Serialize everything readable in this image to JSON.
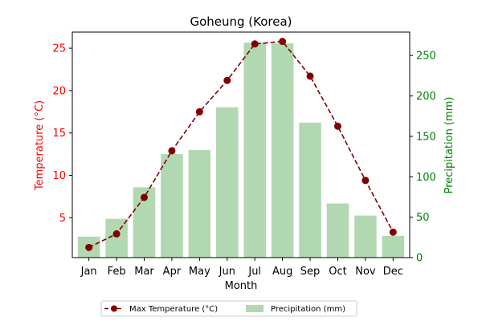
{
  "chart_data": {
    "type": "bar+line",
    "title": "Goheung (Korea)",
    "xlabel": "Month",
    "categories": [
      "Jan",
      "Feb",
      "Mar",
      "Apr",
      "May",
      "Jun",
      "Jul",
      "Aug",
      "Sep",
      "Oct",
      "Nov",
      "Dec"
    ],
    "series": [
      {
        "name": "Max Temperature (°C)",
        "type": "line",
        "axis": "left",
        "color": "#800000",
        "values": [
          1.5,
          3.1,
          7.4,
          12.9,
          17.5,
          21.2,
          25.5,
          25.8,
          21.7,
          15.8,
          9.4,
          3.3
        ]
      },
      {
        "name": "Precipitation (mm)",
        "type": "bar",
        "axis": "right",
        "color": "#b2d8b2",
        "values": [
          26,
          48,
          87,
          128,
          133,
          186,
          266,
          265,
          167,
          67,
          52,
          27
        ]
      }
    ],
    "left_axis": {
      "label": "Temperature (°C)",
      "color": "#ff0000",
      "ylim": [
        0.3,
        26.9
      ],
      "ticks": [
        5,
        10,
        15,
        20,
        25
      ]
    },
    "right_axis": {
      "label": "Precipitation (mm)",
      "color": "#008000",
      "ylim": [
        0,
        279
      ],
      "ticks": [
        0,
        50,
        100,
        150,
        200,
        250
      ]
    },
    "legend_placement": "bottom-center",
    "grid": false
  }
}
